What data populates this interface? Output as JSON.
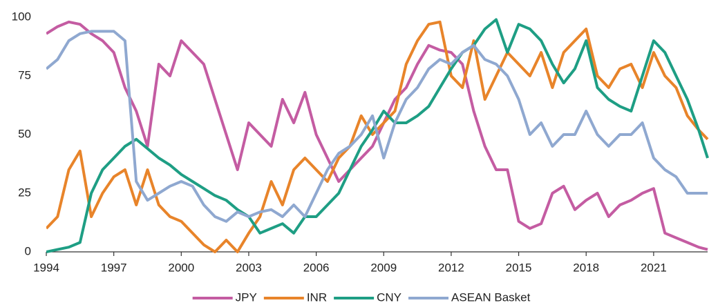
{
  "chart_data": {
    "type": "line",
    "x": [
      1994,
      1994.5,
      1995,
      1995.5,
      1996,
      1996.5,
      1997,
      1997.5,
      1998,
      1998.5,
      1999,
      1999.5,
      2000,
      2000.5,
      2001,
      2001.5,
      2002,
      2002.5,
      2003,
      2003.5,
      2004,
      2004.5,
      2005,
      2005.5,
      2006,
      2006.5,
      2007,
      2007.5,
      2008,
      2008.5,
      2009,
      2009.5,
      2010,
      2010.5,
      2011,
      2011.5,
      2012,
      2012.5,
      2013,
      2013.5,
      2014,
      2014.5,
      2015,
      2015.5,
      2016,
      2016.5,
      2017,
      2017.5,
      2018,
      2018.5,
      2019,
      2019.5,
      2020,
      2020.5,
      2021,
      2021.5,
      2022,
      2022.5,
      2023,
      2023.4
    ],
    "series": [
      {
        "name": "JPY",
        "color": "#c45ca2",
        "values": [
          93,
          96,
          98,
          97,
          93,
          90,
          85,
          70,
          60,
          45,
          80,
          75,
          90,
          85,
          80,
          65,
          50,
          35,
          55,
          50,
          45,
          65,
          55,
          68,
          50,
          40,
          30,
          35,
          40,
          45,
          55,
          65,
          70,
          80,
          88,
          86,
          85,
          80,
          60,
          45,
          35,
          35,
          13,
          10,
          12,
          25,
          28,
          18,
          22,
          25,
          15,
          20,
          22,
          25,
          27,
          8,
          6,
          4,
          2,
          1
        ]
      },
      {
        "name": "INR",
        "color": "#e8842a",
        "values": [
          10,
          15,
          35,
          43,
          15,
          25,
          32,
          35,
          20,
          35,
          20,
          15,
          13,
          8,
          3,
          0,
          5,
          0,
          8,
          15,
          30,
          20,
          35,
          40,
          35,
          30,
          40,
          45,
          58,
          50,
          55,
          60,
          80,
          90,
          97,
          98,
          75,
          70,
          90,
          65,
          75,
          85,
          80,
          75,
          85,
          70,
          85,
          90,
          95,
          75,
          70,
          78,
          80,
          70,
          85,
          75,
          70,
          58,
          52,
          48
        ]
      },
      {
        "name": "CNY",
        "color": "#1e9e84",
        "values": [
          0,
          1,
          2,
          4,
          25,
          35,
          40,
          45,
          48,
          44,
          40,
          37,
          33,
          30,
          27,
          24,
          22,
          18,
          15,
          8,
          10,
          12,
          8,
          15,
          15,
          20,
          25,
          35,
          45,
          52,
          60,
          55,
          55,
          58,
          62,
          70,
          78,
          85,
          88,
          95,
          99,
          85,
          97,
          95,
          90,
          80,
          72,
          78,
          90,
          70,
          65,
          62,
          60,
          75,
          90,
          85,
          75,
          65,
          52,
          40
        ]
      },
      {
        "name": "ASEAN Basket",
        "color": "#8fa8d0",
        "values": [
          78,
          82,
          90,
          93,
          94,
          94,
          94,
          90,
          30,
          22,
          25,
          28,
          30,
          28,
          20,
          15,
          13,
          17,
          15,
          17,
          18,
          15,
          20,
          15,
          25,
          35,
          42,
          45,
          50,
          58,
          40,
          55,
          65,
          70,
          78,
          82,
          80,
          85,
          88,
          82,
          80,
          75,
          65,
          50,
          55,
          45,
          50,
          50,
          60,
          50,
          45,
          50,
          50,
          55,
          40,
          35,
          32,
          25,
          25,
          25
        ]
      }
    ],
    "xlim": [
      1994,
      2023.4
    ],
    "xticks": [
      1994,
      1997,
      2000,
      2003,
      2006,
      2009,
      2012,
      2015,
      2018,
      2021
    ],
    "ylim": [
      0,
      100
    ],
    "yticks": [
      0,
      25,
      50,
      75,
      100
    ],
    "legend": "bottom"
  }
}
